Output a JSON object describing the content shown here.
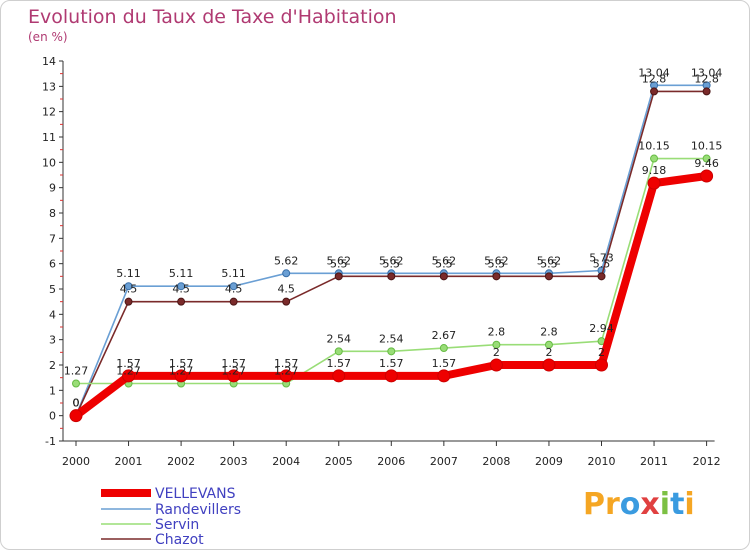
{
  "header": {
    "title": "Evolution du Taux de Taxe d'Habitation",
    "unit": "(en %)"
  },
  "logo": {
    "text": "Proxiti",
    "letters": [
      {
        "ch": "P",
        "color": "#f5a623"
      },
      {
        "ch": "r",
        "color": "#f5a623"
      },
      {
        "ch": "o",
        "color": "#3a9be0"
      },
      {
        "ch": "x",
        "color": "#e04040"
      },
      {
        "ch": "i",
        "color": "#7cc043"
      },
      {
        "ch": "t",
        "color": "#3a9be0"
      },
      {
        "ch": "i",
        "color": "#f5a623"
      }
    ]
  },
  "chart_data": {
    "type": "line",
    "title": "Evolution du Taux de Taxe d'Habitation",
    "ylabel": "(en %)",
    "xlabel": "",
    "ylim": [
      -1,
      14
    ],
    "yticks": [
      -1,
      0,
      1,
      2,
      3,
      4,
      5,
      6,
      7,
      8,
      9,
      10,
      11,
      12,
      13,
      14
    ],
    "grid": false,
    "legend_position": "bottom-left",
    "x": [
      "2000",
      "2001",
      "2002",
      "2003",
      "2004",
      "2005",
      "2006",
      "2007",
      "2008",
      "2009",
      "2010",
      "2011",
      "2012"
    ],
    "series": [
      {
        "name": "VELLEVANS",
        "color": "#ee0000",
        "values": [
          0,
          1.57,
          1.57,
          1.57,
          1.57,
          1.57,
          1.57,
          1.57,
          2,
          2,
          2,
          9.18,
          9.46
        ],
        "labels": [
          "0",
          "1.57",
          "1.57",
          "1.57",
          "1.57",
          "1.57",
          "1.57",
          "1.57",
          "2",
          "2",
          "2",
          "9.18",
          "9.46"
        ]
      },
      {
        "name": "Randevillers",
        "color": "#6a9fd4",
        "values": [
          0,
          5.11,
          5.11,
          5.11,
          5.62,
          5.62,
          5.62,
          5.62,
          5.62,
          5.62,
          5.73,
          13.04,
          13.04
        ],
        "labels": [
          "0",
          "5.11",
          "5.11",
          "5.11",
          "5.62",
          "5.62",
          "5.62",
          "5.62",
          "5.62",
          "5.62",
          "5.73",
          "13.04",
          "13.04"
        ]
      },
      {
        "name": "Servin",
        "color": "#99dd77",
        "values": [
          1.27,
          1.27,
          1.27,
          1.27,
          1.27,
          2.54,
          2.54,
          2.67,
          2.8,
          2.8,
          2.94,
          10.15,
          10.15
        ],
        "labels": [
          "1.27",
          "1.27",
          "1.27",
          "1.27",
          "1.27",
          "2.54",
          "2.54",
          "2.67",
          "2.8",
          "2.8",
          "2.94",
          "10.15",
          "10.15"
        ]
      },
      {
        "name": "Chazot",
        "color": "#7a2a2a",
        "values": [
          0,
          4.5,
          4.5,
          4.5,
          4.5,
          5.5,
          5.5,
          5.5,
          5.5,
          5.5,
          5.5,
          12.8,
          12.8
        ],
        "labels": [
          "0",
          "4.5",
          "4.5",
          "4.5",
          "4.5",
          "5.5",
          "5.5",
          "5.5",
          "5.5",
          "5.5",
          "5.5",
          "12.8",
          "12.8"
        ]
      }
    ]
  }
}
